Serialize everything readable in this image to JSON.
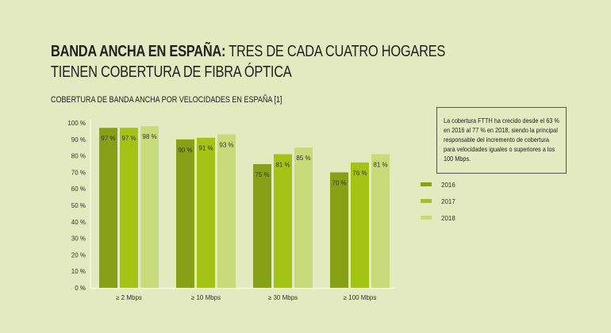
{
  "title_bold": "BANDA ANCHA EN ESPAÑA:",
  "title_rest": " TRES DE CADA CUATRO HOGARES TIENEN COBERTURA DE FIBRA ÓPTICA",
  "note": "La cobertura FTTH ha crecido desde el 63 % en 2016 al 77 % en 2018, siendo la principal responsable del incremento de cobertura para velocidades iguales o superiores a los 100 Mbps.",
  "chart_data": {
    "type": "bar",
    "title": "COBERTURA DE BANDA ANCHA POR VELOCIDADES EN ESPAÑA [1]",
    "categories": [
      "≥ 2 Mbps",
      "≥ 10 Mbps",
      "≥ 30 Mbps",
      "≥ 100 Mbps"
    ],
    "series": [
      {
        "name": "2016",
        "color": "#86a116",
        "values": [
          97,
          90,
          75,
          70
        ]
      },
      {
        "name": "2017",
        "color": "#a3c414",
        "values": [
          97,
          91,
          81,
          76
        ]
      },
      {
        "name": "2018",
        "color": "#c9da7a",
        "values": [
          98,
          93,
          85,
          81
        ]
      }
    ],
    "yticks": [
      "0 %",
      "10 %",
      "20 %",
      "30 %",
      "40 %",
      "50 %",
      "60 %",
      "70 %",
      "80 %",
      "90 %",
      "100 %"
    ],
    "ylim": [
      0,
      100
    ],
    "legend": "right",
    "grid": false
  }
}
